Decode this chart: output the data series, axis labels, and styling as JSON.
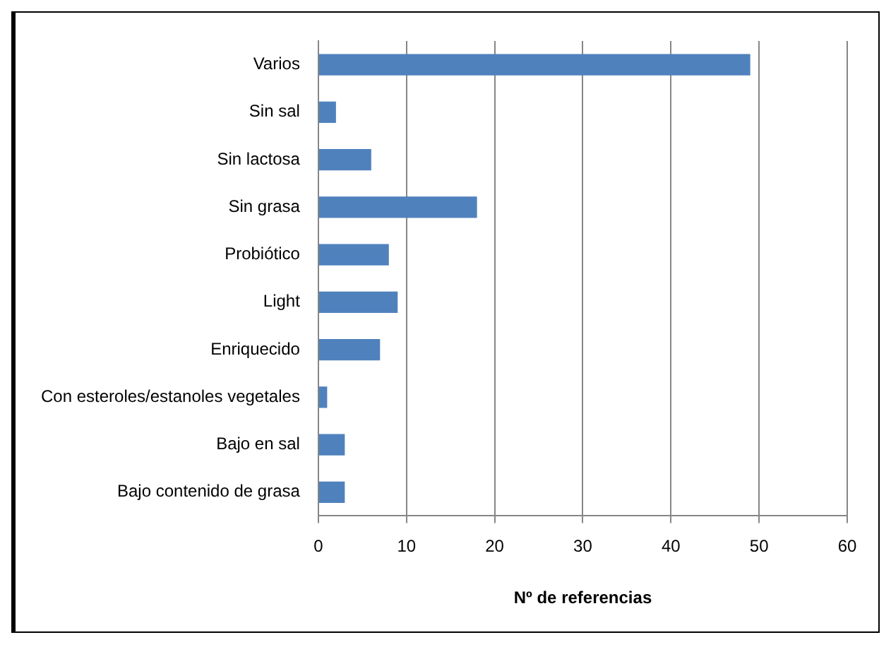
{
  "chart_data": {
    "type": "bar",
    "orientation": "horizontal",
    "xlabel": "Nº de referencias",
    "categories": [
      "Varios",
      "Sin sal",
      "Sin lactosa",
      "Sin grasa",
      "Probiótico",
      "Light",
      "Enriquecido",
      "Con esteroles/estanoles vegetales",
      "Bajo en sal",
      "Bajo contenido de grasa"
    ],
    "values": [
      49,
      2,
      6,
      18,
      8,
      9,
      7,
      1,
      3,
      3
    ],
    "color": "#4f81bd",
    "xlim": [
      0,
      60
    ],
    "xticks": [
      0,
      10,
      20,
      30,
      40,
      50,
      60
    ],
    "grid": "x",
    "legend": false
  }
}
